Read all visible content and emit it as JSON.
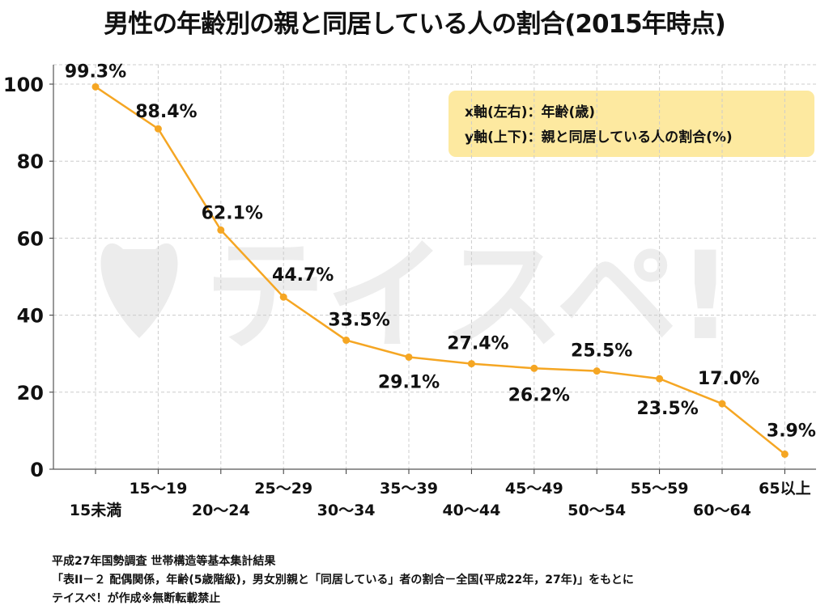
{
  "chart_data": {
    "type": "line",
    "title": "男性の年齢別の親と同居している人の割合(2015年時点)",
    "categories": [
      "15未満",
      "15〜19",
      "20〜24",
      "25〜29",
      "30〜34",
      "35〜39",
      "40〜44",
      "45〜49",
      "50〜54",
      "55〜59",
      "60〜64",
      "65以上"
    ],
    "series": [
      {
        "values": [
          99.3,
          88.4,
          62.1,
          44.7,
          33.5,
          29.1,
          27.4,
          26.2,
          25.5,
          23.5,
          17.0,
          3.9
        ]
      }
    ],
    "data_labels": [
      "99.3%",
      "88.4%",
      "62.1%",
      "44.7%",
      "33.5%",
      "29.1%",
      "27.4%",
      "26.2%",
      "25.5%",
      "23.5%",
      "17.0%",
      "3.9%"
    ],
    "ylim": [
      0,
      100
    ],
    "yticks": [
      0,
      20,
      40,
      60,
      80,
      100
    ],
    "grid": true,
    "line_color": "#f5a623",
    "legend_box": {
      "x_line": "x軸(左右)：年齢(歳)",
      "y_line": "y軸(上下)：親と同居している人の割合(%)",
      "background": "#fde9a0"
    },
    "watermark": "テイスペ!"
  },
  "source": {
    "line1": "平成27年国勢調査 世帯構造等基本集計結果",
    "line2": "「表II－２ 配偶関係，年齢(5歳階級)，男女別親と「同居している」者の割合－全国(平成22年，27年)」をもとに",
    "line3": "テイスペ！が作成※無断転載禁止"
  }
}
